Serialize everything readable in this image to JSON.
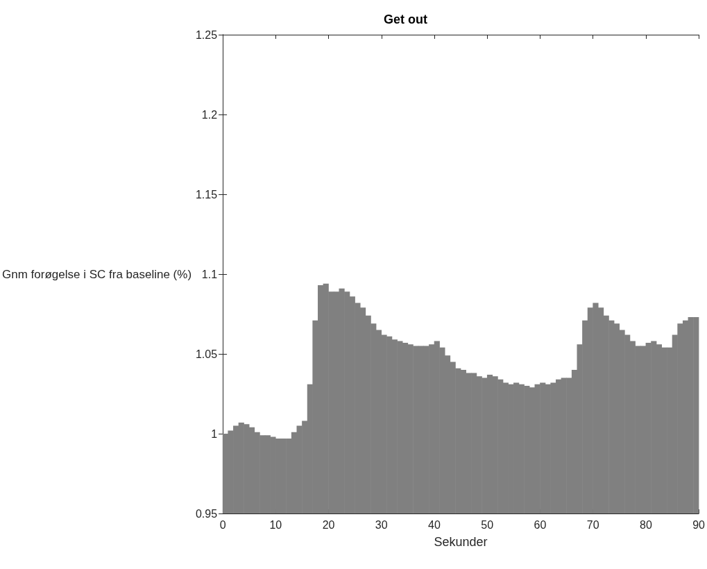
{
  "chart_data": {
    "type": "bar",
    "title": "Get out",
    "xlabel": "Sekunder",
    "ylabel": "Gnm forøgelse i SC fra baseline (%)",
    "x": [
      0.5,
      1.5,
      2.5,
      3.5,
      4.5,
      5.5,
      6.5,
      7.5,
      8.5,
      9.5,
      10.5,
      11.5,
      12.5,
      13.5,
      14.5,
      15.5,
      16.5,
      17.5,
      18.5,
      19.5,
      20.5,
      21.5,
      22.5,
      23.5,
      24.5,
      25.5,
      26.5,
      27.5,
      28.5,
      29.5,
      30.5,
      31.5,
      32.5,
      33.5,
      34.5,
      35.5,
      36.5,
      37.5,
      38.5,
      39.5,
      40.5,
      41.5,
      42.5,
      43.5,
      44.5,
      45.5,
      46.5,
      47.5,
      48.5,
      49.5,
      50.5,
      51.5,
      52.5,
      53.5,
      54.5,
      55.5,
      56.5,
      57.5,
      58.5,
      59.5,
      60.5,
      61.5,
      62.5,
      63.5,
      64.5,
      65.5,
      66.5,
      67.5,
      68.5,
      69.5,
      70.5,
      71.5,
      72.5,
      73.5,
      74.5,
      75.5,
      76.5,
      77.5,
      78.5,
      79.5,
      80.5,
      81.5,
      82.5,
      83.5,
      84.5,
      85.5,
      86.5,
      87.5,
      88.5,
      89.5
    ],
    "values": [
      1.0,
      1.002,
      1.005,
      1.007,
      1.006,
      1.004,
      1.001,
      0.999,
      0.999,
      0.998,
      0.997,
      0.997,
      0.997,
      1.001,
      1.005,
      1.008,
      1.031,
      1.071,
      1.093,
      1.094,
      1.089,
      1.089,
      1.091,
      1.089,
      1.086,
      1.082,
      1.079,
      1.074,
      1.069,
      1.065,
      1.062,
      1.061,
      1.059,
      1.058,
      1.057,
      1.056,
      1.055,
      1.055,
      1.055,
      1.056,
      1.058,
      1.054,
      1.049,
      1.045,
      1.041,
      1.04,
      1.038,
      1.038,
      1.036,
      1.035,
      1.037,
      1.036,
      1.034,
      1.032,
      1.031,
      1.032,
      1.031,
      1.03,
      1.029,
      1.031,
      1.032,
      1.031,
      1.032,
      1.034,
      1.035,
      1.035,
      1.04,
      1.056,
      1.071,
      1.079,
      1.082,
      1.079,
      1.074,
      1.071,
      1.069,
      1.065,
      1.062,
      1.058,
      1.055,
      1.055,
      1.057,
      1.058,
      1.056,
      1.054,
      1.054,
      1.062,
      1.069,
      1.071,
      1.073,
      1.073
    ],
    "color": "#808080",
    "xlim": [
      0,
      90
    ],
    "xticks": [
      0,
      10,
      20,
      30,
      40,
      50,
      60,
      70,
      80,
      90
    ],
    "ylim": [
      0.95,
      1.25
    ],
    "yticks": [
      0.95,
      1,
      1.05,
      1.1,
      1.15,
      1.2,
      1.25
    ]
  }
}
